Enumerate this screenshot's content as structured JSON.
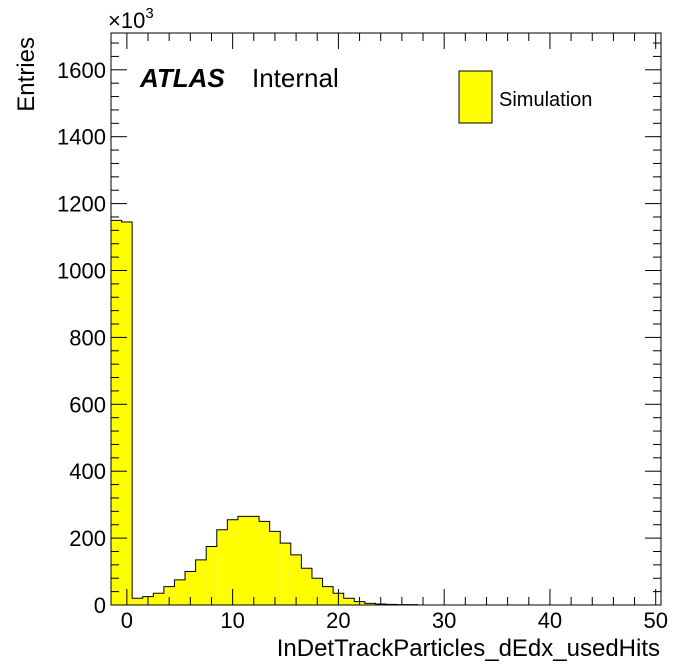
{
  "chart_data": {
    "type": "bar",
    "histogram": true,
    "xlabel": "InDetTrackParticles_dEdx_usedHits",
    "ylabel": "Entries",
    "y_multiplier": "×10",
    "y_multiplier_exponent": "3",
    "xlim": [
      -1.5,
      50.5
    ],
    "ylim": [
      0,
      1710
    ],
    "x_ticks": [
      0,
      10,
      20,
      30,
      40,
      50
    ],
    "y_ticks": [
      0,
      200,
      400,
      600,
      800,
      1000,
      1200,
      1400,
      1600
    ],
    "bin_width": 1,
    "bin_centers": [
      -1,
      0,
      1,
      2,
      3,
      4,
      5,
      6,
      7,
      8,
      9,
      10,
      11,
      12,
      13,
      14,
      15,
      16,
      17,
      18,
      19,
      20,
      21,
      22,
      23,
      24,
      25,
      26,
      27,
      28,
      29,
      30,
      31,
      32,
      33,
      34,
      35,
      36,
      37,
      38,
      39,
      40,
      41,
      42,
      43,
      44,
      45,
      46,
      47,
      48,
      49,
      50
    ],
    "series": [
      {
        "name": "Simulation",
        "color": "#ffff00",
        "values": [
          1150,
          1145,
          20,
          25,
          35,
          55,
          75,
          100,
          135,
          175,
          225,
          255,
          265,
          265,
          250,
          220,
          185,
          150,
          110,
          80,
          55,
          35,
          20,
          10,
          5,
          3,
          2,
          1,
          1,
          0,
          0,
          0,
          0,
          0,
          0,
          0,
          0,
          0,
          0,
          0,
          0,
          0,
          0,
          0,
          0,
          0,
          0,
          0,
          0,
          0,
          0,
          0
        ]
      }
    ],
    "legend_position": "top-right",
    "grid": false
  },
  "labels": {
    "atlas": "ATLAS",
    "internal": "Internal"
  }
}
